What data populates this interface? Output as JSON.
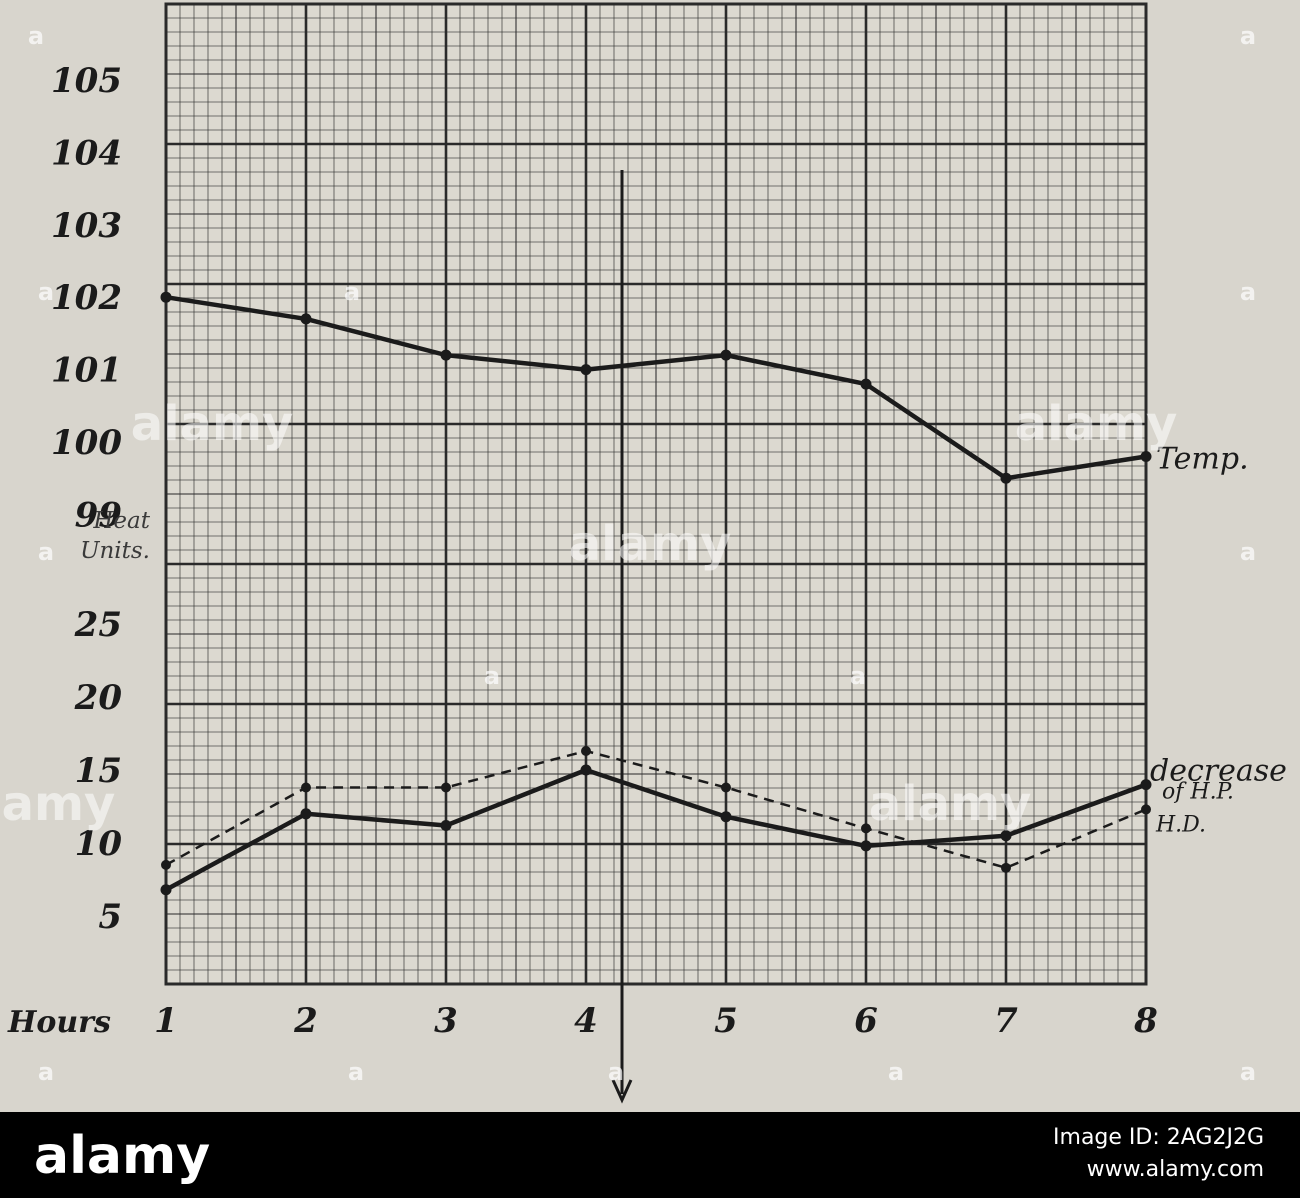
{
  "chart_data": {
    "type": "line",
    "x": [
      1,
      2,
      3,
      4,
      5,
      6,
      7,
      8
    ],
    "x_axis_title": "Hours",
    "temp_ticks": [
      "105",
      "104",
      "103",
      "102",
      "101",
      "100",
      "99"
    ],
    "heat_ticks": [
      "25",
      "20",
      "15",
      "10",
      "5"
    ],
    "heat_units_label": [
      "Heat",
      "Units."
    ],
    "temp_range": [
      99,
      105
    ],
    "heat_range": [
      0,
      25
    ],
    "grid": true,
    "series": [
      {
        "name": "Temp.",
        "axis": "temp",
        "style": "solid",
        "values": [
          102.0,
          101.7,
          101.2,
          101.0,
          101.2,
          100.8,
          99.5,
          99.8
        ]
      },
      {
        "name": "decrease of H.P.",
        "axis": "heat",
        "style": "dashed",
        "values": [
          8.5,
          13.8,
          13.8,
          16.3,
          13.8,
          11.0,
          8.3,
          12.3
        ]
      },
      {
        "name": "H.D.",
        "axis": "heat",
        "style": "solid",
        "values": [
          6.8,
          12.0,
          11.2,
          15.0,
          11.8,
          9.8,
          10.5,
          14.0
        ]
      }
    ],
    "label_lines": {
      "temp": [
        "Temp."
      ],
      "hp": [
        "decrease",
        "of H.P."
      ],
      "hd": [
        "H.D."
      ]
    }
  },
  "watermark": {
    "mark": "a",
    "word": "alamy"
  },
  "footer": {
    "logo": "alamy",
    "lines": [
      "Image ID: 2AG2J2G",
      "www.alamy.com"
    ]
  },
  "colors": {
    "ink": "#1b1b1b",
    "paper": "#d8d5cd",
    "grid": "#2a2a2a"
  }
}
